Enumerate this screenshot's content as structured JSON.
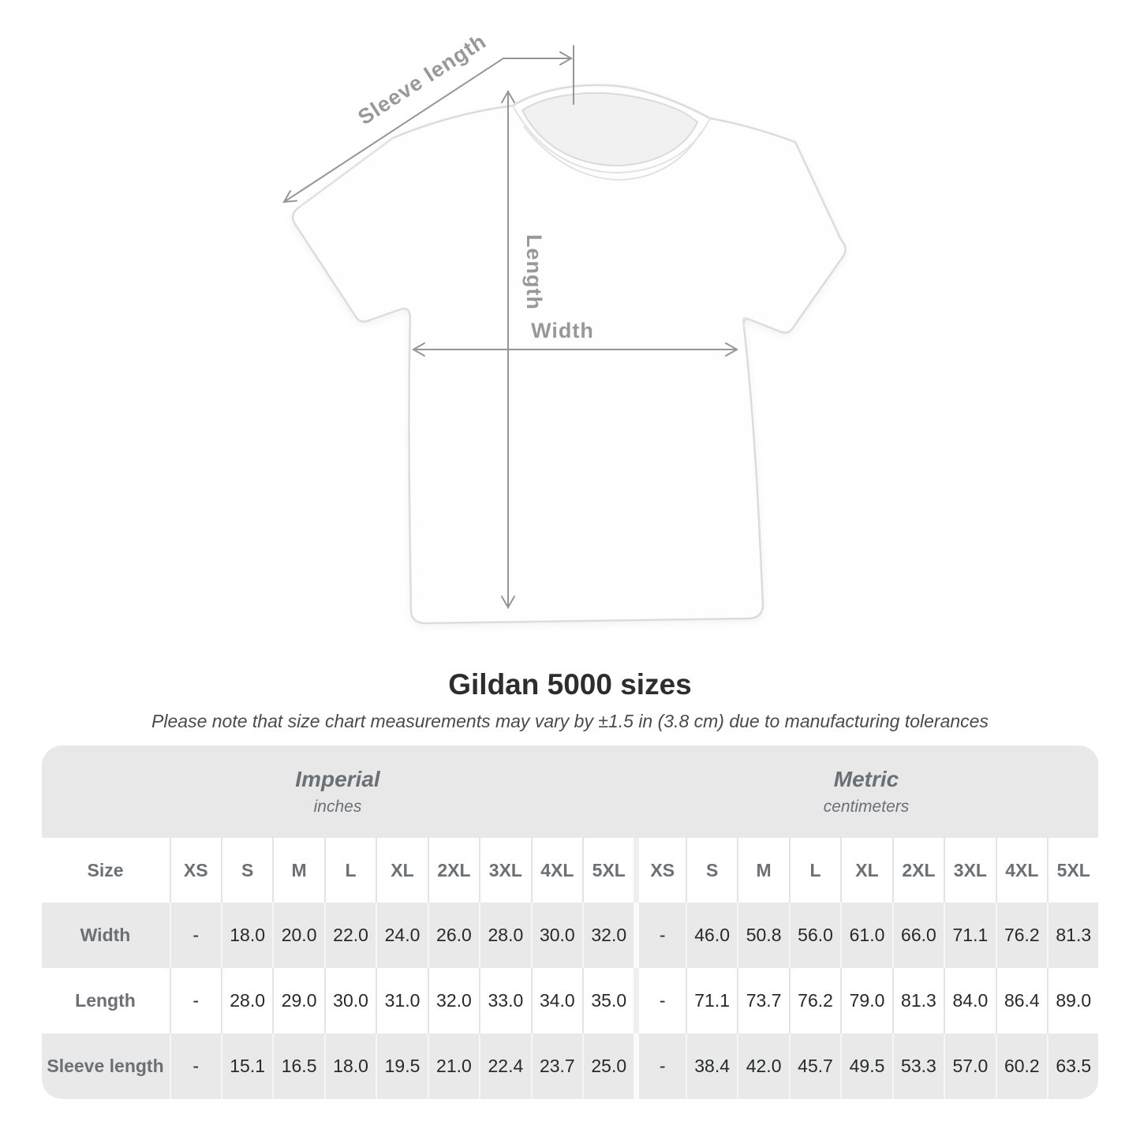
{
  "title": "Gildan 5000 sizes",
  "subtitle": "Please note that size chart measurements may vary by ±1.5 in (3.8 cm) due to manufacturing tolerances",
  "diagram": {
    "labels": {
      "sleeve_length": "Sleeve length",
      "length": "Length",
      "width": "Width"
    }
  },
  "colors": {
    "band_bg": "#e8e8e8",
    "alt_row_bg": "#e9e9e9",
    "header_text": "#6b7076",
    "value_text": "#27292b",
    "arrow_gray": "#96969a",
    "title_text": "#2d2d2d"
  },
  "chart_data": {
    "type": "table",
    "title": "Gildan 5000 sizes",
    "sections": [
      {
        "label": "Imperial",
        "unit": "inches"
      },
      {
        "label": "Metric",
        "unit": "centimeters"
      }
    ],
    "size_header": "Size",
    "sizes": [
      "XS",
      "S",
      "M",
      "L",
      "XL",
      "2XL",
      "3XL",
      "4XL",
      "5XL"
    ],
    "rows": [
      {
        "label": "Width",
        "imperial": [
          "-",
          "18.0",
          "20.0",
          "22.0",
          "24.0",
          "26.0",
          "28.0",
          "30.0",
          "32.0"
        ],
        "metric": [
          "-",
          "46.0",
          "50.8",
          "56.0",
          "61.0",
          "66.0",
          "71.1",
          "76.2",
          "81.3"
        ]
      },
      {
        "label": "Length",
        "imperial": [
          "-",
          "28.0",
          "29.0",
          "30.0",
          "31.0",
          "32.0",
          "33.0",
          "34.0",
          "35.0"
        ],
        "metric": [
          "-",
          "71.1",
          "73.7",
          "76.2",
          "79.0",
          "81.3",
          "84.0",
          "86.4",
          "89.0"
        ]
      },
      {
        "label": "Sleeve length",
        "imperial": [
          "-",
          "15.1",
          "16.5",
          "18.0",
          "19.5",
          "21.0",
          "22.4",
          "23.7",
          "25.0"
        ],
        "metric": [
          "-",
          "38.4",
          "42.0",
          "45.7",
          "49.5",
          "53.3",
          "57.0",
          "60.2",
          "63.5"
        ]
      }
    ]
  }
}
